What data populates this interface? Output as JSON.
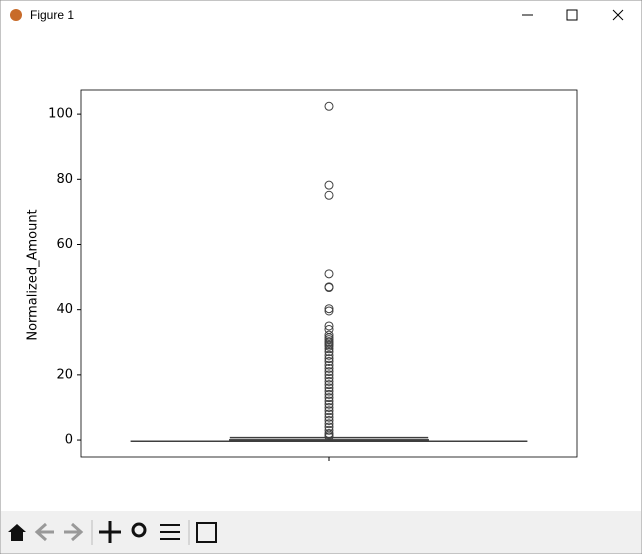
{
  "window": {
    "title": "Figure 1"
  },
  "chart_data": {
    "type": "box",
    "y_label": "Normalized_Amount",
    "categories": [
      null
    ],
    "whisker_low": -0.35,
    "q1": -0.33,
    "median": -0.27,
    "q3": 0.07,
    "whisker_high": 0.75,
    "fliers": [
      102.4,
      78.2,
      75.1,
      51.0,
      47.0,
      46.8,
      40.3,
      39.6,
      35.0,
      33.9,
      32.2,
      31.4,
      30.8,
      30.2,
      29.8,
      29.3,
      28.8,
      28.0,
      27.1,
      26.0,
      25.0,
      24.1,
      23.0,
      22.0,
      21.0,
      20.0,
      19.0,
      18.0,
      17.0,
      16.0,
      15.0,
      14.0,
      13.0,
      12.0,
      11.0,
      10.0,
      9.0,
      8.0,
      7.0,
      6.0,
      5.0,
      4.0,
      3.0,
      2.0,
      1.5,
      1.0
    ],
    "color": "#3f3f3f",
    "ylim": [
      -5.2,
      107.4
    ],
    "yticks": [
      0,
      20,
      40,
      60,
      80,
      100
    ]
  }
}
